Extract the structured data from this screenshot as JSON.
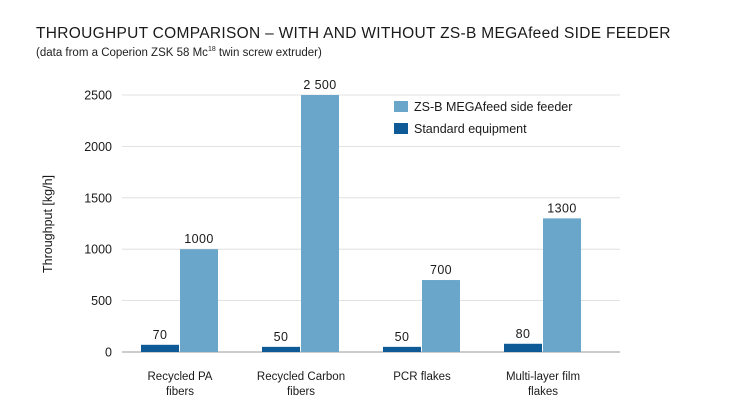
{
  "chart_data": {
    "type": "bar",
    "title": "THROUGHPUT COMPARISON – WITH AND WITHOUT ZS-B MEGAfeed SIDE FEEDER",
    "subtitle_before": "(data from a Coperion ZSK 58 Mc",
    "subtitle_sup": "18",
    "subtitle_after": " twin screw extruder)",
    "ylabel": "Throughput [kg/h]",
    "xlabel": "",
    "ylim": [
      0,
      2500
    ],
    "yticks": [
      0,
      500,
      1000,
      1500,
      2000,
      2500
    ],
    "ytick_labels": [
      "0",
      "500",
      "1000",
      "1500",
      "2000",
      "2500"
    ],
    "grid": true,
    "legend_position": "top-right",
    "categories": [
      [
        "Recycled PA",
        "fibers"
      ],
      [
        "Recycled Carbon",
        "fibers"
      ],
      [
        "PCR flakes"
      ],
      [
        "Multi-layer film",
        "flakes"
      ]
    ],
    "series": [
      {
        "name": "Standard equipment",
        "color": "#0d5a96",
        "values": [
          70,
          50,
          50,
          80
        ],
        "value_labels": [
          "70",
          "50",
          "50",
          "80"
        ]
      },
      {
        "name": "ZS-B MEGAfeed side feeder",
        "color": "#6aa6c9",
        "values": [
          1000,
          2500,
          700,
          1300
        ],
        "value_labels": [
          "1000",
          "2 500",
          "700",
          "1300"
        ]
      }
    ],
    "legend_order": [
      1,
      0
    ]
  }
}
